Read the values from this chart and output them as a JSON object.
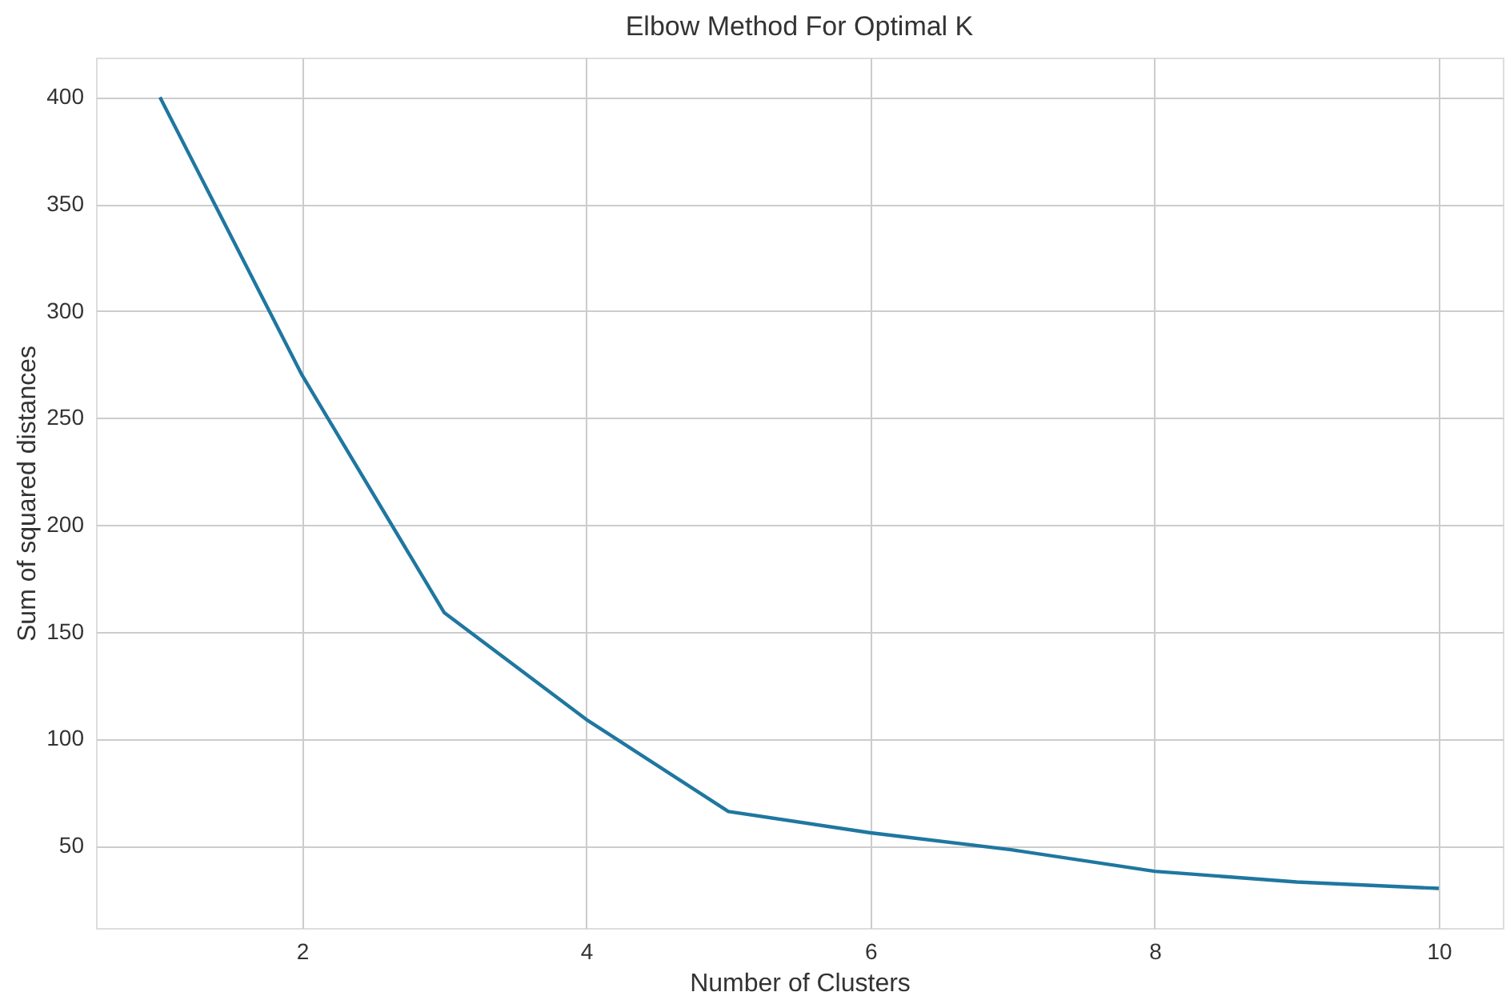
{
  "chart_data": {
    "type": "line",
    "title": "Elbow Method For Optimal K",
    "xlabel": "Number of Clusters",
    "ylabel": "Sum of squared distances",
    "x": [
      1,
      2,
      3,
      4,
      5,
      6,
      7,
      8,
      9,
      10
    ],
    "series": [
      {
        "color": "#1f77a0",
        "values": [
          400,
          270,
          159,
          109,
          66,
          56,
          48,
          38,
          33,
          30
        ]
      }
    ],
    "xlim": [
      0.55,
      10.45
    ],
    "xticks": [
      2,
      4,
      6,
      8,
      10
    ],
    "ylim": [
      11.5,
      418.5
    ],
    "yticks": [
      50,
      100,
      150,
      200,
      250,
      300,
      350,
      400
    ],
    "grid": true,
    "marker": "none",
    "line_style": "solid"
  }
}
